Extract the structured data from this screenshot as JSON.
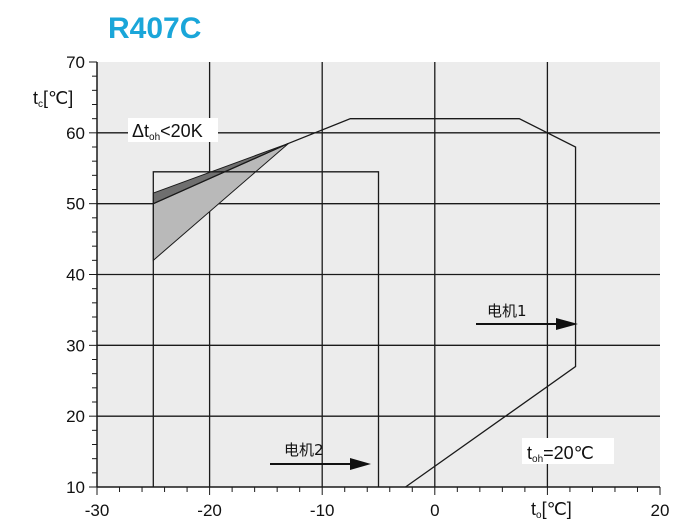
{
  "colors": {
    "title": "#1aa6d9",
    "plot_background": "#ececec",
    "grid": "#1a1a1a",
    "envelope_line": "#1a1a1a",
    "shade_light": "#b9b9b9",
    "shade_dark": "#6f6f6f"
  },
  "chart_data": {
    "type": "line",
    "title": "R407C",
    "ylabel": {
      "main": "t",
      "sub": "c",
      "unit": "[℃]"
    },
    "xlabel": {
      "main": "t",
      "sub": "o",
      "unit": "[℃]"
    },
    "xlim": [
      -30,
      20
    ],
    "ylim": [
      10,
      70
    ],
    "x_ticks": [
      -30,
      -20,
      -10,
      0,
      20
    ],
    "x_tick_labels": [
      "-30",
      "-20",
      "-10",
      "0",
      "20"
    ],
    "y_ticks": [
      10,
      20,
      30,
      40,
      50,
      60,
      70
    ],
    "y_tick_labels": [
      "10",
      "20",
      "30",
      "40",
      "50",
      "60",
      "70"
    ],
    "x_gridlines": [
      -20,
      -10,
      0,
      10
    ],
    "y_gridlines": [
      20,
      30,
      40,
      50,
      60
    ],
    "grid": true,
    "series": [
      {
        "name": "电机1",
        "points": [
          [
            -2.6,
            10
          ],
          [
            12.5,
            27
          ],
          [
            12.5,
            58
          ],
          [
            7.5,
            62
          ],
          [
            -7.5,
            62
          ],
          [
            -13,
            58.5
          ],
          [
            -25,
            50
          ]
        ]
      },
      {
        "name": "电机2",
        "points": [
          [
            -25,
            10
          ],
          [
            -25,
            54.5
          ],
          [
            -5,
            54.5
          ],
          [
            -5,
            10
          ]
        ]
      }
    ],
    "shaded_regions": [
      {
        "fill": "shade_light",
        "points": [
          [
            -25,
            42
          ],
          [
            -13,
            58.5
          ],
          [
            -25,
            50
          ]
        ]
      },
      {
        "fill": "shade_dark",
        "points": [
          [
            -25,
            50
          ],
          [
            -13,
            58.5
          ],
          [
            -25,
            51.5
          ]
        ]
      }
    ],
    "annotations": {
      "delta_label": {
        "prefix": "Δt",
        "sub": "oh",
        "suffix": "<20K"
      },
      "toh_label": {
        "main": "t",
        "sub": "oh",
        "suffix": "=20℃"
      },
      "motor1": "电机1",
      "motor2": "电机2"
    }
  }
}
